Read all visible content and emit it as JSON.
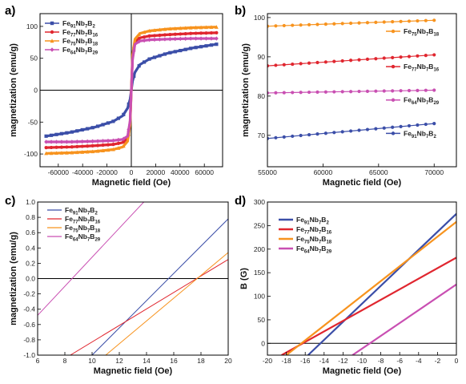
{
  "colors": {
    "blue": "#3b4ea8",
    "red": "#e0262f",
    "orange": "#f7931e",
    "magenta": "#c94fb2"
  },
  "chart_data": [
    {
      "panel": "a)",
      "type": "line",
      "xlabel": "Magnetic field (Oe)",
      "ylabel": "magnetization (emu/g)",
      "xlim": [
        -75000,
        75000
      ],
      "ylim": [
        -120,
        120
      ],
      "xticks": [
        -60000,
        -40000,
        -20000,
        0,
        20000,
        40000,
        60000
      ],
      "yticks": [
        -100,
        -50,
        0,
        50,
        100
      ],
      "xtick_labels": [
        "-60000",
        "-40000",
        "-20000",
        "0",
        "20000",
        "40000",
        "60000"
      ],
      "ytick_labels": [
        "-100",
        "-50",
        "0",
        "50",
        "100"
      ],
      "legend_position": "top-left",
      "series": [
        {
          "name": "Fe91Nb7B2",
          "base": "Fe",
          "parts": [
            [
              "91",
              "Nb"
            ],
            [
              "7",
              "B"
            ],
            [
              "2",
              ""
            ]
          ],
          "color": "blue",
          "marker": "square",
          "x": [
            -70000,
            -50000,
            -30000,
            -15000,
            -7000,
            -3000,
            -1000,
            0,
            1000,
            3000,
            7000,
            15000,
            30000,
            50000,
            70000
          ],
          "y": [
            -72,
            -66,
            -58,
            -49,
            -40,
            -28,
            -14,
            0,
            14,
            28,
            40,
            49,
            58,
            66,
            72
          ]
        },
        {
          "name": "Fe77Nb7B16",
          "base": "Fe",
          "parts": [
            [
              "77",
              "Nb"
            ],
            [
              "7",
              "B"
            ],
            [
              "16",
              ""
            ]
          ],
          "color": "red",
          "marker": "circle",
          "x": [
            -70000,
            -50000,
            -30000,
            -15000,
            -7000,
            -3000,
            -1000,
            0,
            1000,
            3000,
            7000,
            15000,
            30000,
            50000,
            70000
          ],
          "y": [
            -90,
            -89,
            -87,
            -85,
            -82,
            -75,
            -50,
            0,
            50,
            75,
            82,
            85,
            87,
            89,
            90
          ]
        },
        {
          "name": "Fe75Nb7B18",
          "base": "Fe",
          "parts": [
            [
              "75",
              "Nb"
            ],
            [
              "7",
              "B"
            ],
            [
              "18",
              ""
            ]
          ],
          "color": "orange",
          "marker": "triangle",
          "x": [
            -70000,
            -50000,
            -30000,
            -15000,
            -7000,
            -3000,
            -1000,
            0,
            1000,
            3000,
            7000,
            15000,
            30000,
            50000,
            70000
          ],
          "y": [
            -99,
            -98,
            -96,
            -93,
            -89,
            -80,
            -55,
            0,
            55,
            80,
            89,
            93,
            96,
            98,
            99
          ]
        },
        {
          "name": "Fe64Nb7B29",
          "base": "Fe",
          "parts": [
            [
              "64",
              "Nb"
            ],
            [
              "7",
              "B"
            ],
            [
              "29",
              ""
            ]
          ],
          "color": "magenta",
          "marker": "diamond",
          "x": [
            -70000,
            -50000,
            -30000,
            -15000,
            -7000,
            -3000,
            -1000,
            0,
            1000,
            3000,
            7000,
            15000,
            30000,
            50000,
            70000
          ],
          "y": [
            -81,
            -81,
            -80,
            -79,
            -77,
            -72,
            -48,
            0,
            48,
            72,
            77,
            79,
            80,
            81,
            81
          ]
        }
      ]
    },
    {
      "panel": "b)",
      "type": "line",
      "xlabel": "Magnetic field (Oe)",
      "ylabel": "magnetization (emu/g)",
      "xlim": [
        55000,
        72000
      ],
      "ylim": [
        62,
        101
      ],
      "xticks": [
        55000,
        60000,
        65000,
        70000
      ],
      "yticks": [
        70,
        80,
        90,
        100
      ],
      "xtick_labels": [
        "55000",
        "60000",
        "65000",
        "70000"
      ],
      "ytick_labels": [
        "70",
        "80",
        "90",
        "100"
      ],
      "legend_position": "right",
      "series": [
        {
          "name": "Fe75Nb7B18",
          "base": "Fe",
          "parts": [
            [
              "75",
              "Nb"
            ],
            [
              "7",
              "B"
            ],
            [
              "18",
              ""
            ]
          ],
          "color": "orange",
          "marker": "circle",
          "x_start": 55000,
          "x_end": 70000,
          "y_start": 97.8,
          "y_end": 99.3,
          "legend_y": 96.5
        },
        {
          "name": "Fe77Nb7B16",
          "base": "Fe",
          "parts": [
            [
              "77",
              "Nb"
            ],
            [
              "7",
              "B"
            ],
            [
              "16",
              ""
            ]
          ],
          "color": "red",
          "marker": "circle",
          "x_start": 55000,
          "x_end": 70000,
          "y_start": 87.7,
          "y_end": 90.5,
          "legend_y": 87.5
        },
        {
          "name": "Fe64Nb7B29",
          "base": "Fe",
          "parts": [
            [
              "64",
              "Nb"
            ],
            [
              "7",
              "B"
            ],
            [
              "29",
              ""
            ]
          ],
          "color": "magenta",
          "marker": "circle",
          "x_start": 55000,
          "x_end": 70000,
          "y_start": 80.8,
          "y_end": 81.5,
          "legend_y": 79
        },
        {
          "name": "Fe91Nb7B2",
          "base": "Fe",
          "parts": [
            [
              "91",
              "Nb"
            ],
            [
              "7",
              "B"
            ],
            [
              "2",
              ""
            ]
          ],
          "color": "blue",
          "marker": "circle",
          "x_start": 55000,
          "x_end": 70000,
          "y_start": 69.2,
          "y_end": 73.0,
          "legend_y": 70.5
        }
      ]
    },
    {
      "panel": "c)",
      "type": "line",
      "xlabel": "Magnetic field (Oe)",
      "ylabel": "magnetization (emu/g)",
      "xlim": [
        6,
        20
      ],
      "ylim": [
        -1.0,
        1.0
      ],
      "xticks": [
        6,
        8,
        10,
        12,
        14,
        16,
        18,
        20
      ],
      "yticks": [
        -1.0,
        -0.8,
        -0.6,
        -0.4,
        -0.2,
        0.0,
        0.2,
        0.4,
        0.6,
        0.8,
        1.0
      ],
      "xtick_labels": [
        "6",
        "8",
        "10",
        "12",
        "14",
        "16",
        "18",
        "20"
      ],
      "ytick_labels": [
        "-1.0",
        "-0.8",
        "-0.6",
        "-0.4",
        "-0.2",
        "0.0",
        "0.2",
        "0.4",
        "0.6",
        "0.8",
        "1.0"
      ],
      "legend_position": "top-left",
      "series": [
        {
          "name": "Fe91Nb7B2",
          "base": "Fe",
          "parts": [
            [
              "91",
              "Nb"
            ],
            [
              "7",
              "B"
            ],
            [
              "2",
              ""
            ]
          ],
          "color": "blue",
          "x": [
            10.0,
            20.0
          ],
          "y": [
            -1.0,
            0.78
          ]
        },
        {
          "name": "Fe77Nb7B16",
          "base": "Fe",
          "parts": [
            [
              "77",
              "Nb"
            ],
            [
              "7",
              "B"
            ],
            [
              "16",
              ""
            ]
          ],
          "color": "red",
          "x": [
            8.4,
            20.0
          ],
          "y": [
            -1.0,
            0.25
          ]
        },
        {
          "name": "Fe75Nb7B18",
          "base": "Fe",
          "parts": [
            [
              "75",
              "Nb"
            ],
            [
              "7",
              "B"
            ],
            [
              "18",
              ""
            ]
          ],
          "color": "orange",
          "x": [
            11.0,
            20.0
          ],
          "y": [
            -1.0,
            0.34
          ]
        },
        {
          "name": "Fe64Nb7B29",
          "base": "Fe",
          "parts": [
            [
              "64",
              "Nb"
            ],
            [
              "7",
              "B"
            ],
            [
              "29",
              ""
            ]
          ],
          "color": "magenta",
          "x": [
            6.0,
            13.8
          ],
          "y": [
            -0.48,
            1.0
          ]
        }
      ]
    },
    {
      "panel": "d)",
      "type": "line",
      "xlabel": "Magnetic field (Oe)",
      "ylabel": "B (G)",
      "xlim": [
        -20,
        0
      ],
      "ylim": [
        -25,
        300
      ],
      "xticks": [
        -20,
        -18,
        -16,
        -14,
        -12,
        -10,
        -8,
        -6,
        -4,
        -2,
        0
      ],
      "yticks": [
        0,
        50,
        100,
        150,
        200,
        250,
        300
      ],
      "xtick_labels": [
        "-20",
        "-18",
        "-16",
        "-14",
        "-12",
        "-10",
        "-8",
        "-6",
        "-4",
        "-2",
        "0"
      ],
      "ytick_labels": [
        "0",
        "50",
        "100",
        "150",
        "200",
        "250",
        "300"
      ],
      "legend_position": "top-left",
      "series": [
        {
          "name": "Fe91Nb7B2",
          "base": "Fe",
          "parts": [
            [
              "91",
              "Nb"
            ],
            [
              "7",
              "B"
            ],
            [
              "2",
              ""
            ]
          ],
          "color": "blue",
          "x": [
            -15.7,
            0
          ],
          "y": [
            -25,
            275
          ]
        },
        {
          "name": "Fe77Nb7B16",
          "base": "Fe",
          "parts": [
            [
              "77",
              "Nb"
            ],
            [
              "7",
              "B"
            ],
            [
              "16",
              ""
            ]
          ],
          "color": "red",
          "x": [
            -18.5,
            0
          ],
          "y": [
            -25,
            182
          ]
        },
        {
          "name": "Fe75Nb7B18",
          "base": "Fe",
          "parts": [
            [
              "75",
              "Nb"
            ],
            [
              "7",
              "B"
            ],
            [
              "18",
              ""
            ]
          ],
          "color": "orange",
          "x": [
            -18.0,
            0
          ],
          "y": [
            -25,
            258
          ]
        },
        {
          "name": "Fe64Nb7B29",
          "base": "Fe",
          "parts": [
            [
              "64",
              "Nb"
            ],
            [
              "7",
              "B"
            ],
            [
              "29",
              ""
            ]
          ],
          "color": "magenta",
          "x": [
            -11.0,
            0
          ],
          "y": [
            -25,
            125
          ]
        }
      ]
    }
  ]
}
